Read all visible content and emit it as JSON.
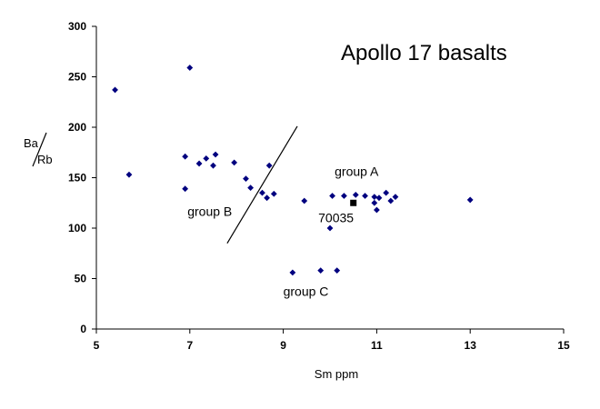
{
  "chart_data": {
    "type": "scatter",
    "title": "Apollo 17 basalts",
    "xlabel": "Sm ppm",
    "ylabel_numerator": "Ba",
    "ylabel_denominator": "Rb",
    "xlim": [
      5,
      15
    ],
    "ylim": [
      0,
      300
    ],
    "x_ticks": [
      5,
      7,
      9,
      11,
      13,
      15
    ],
    "y_ticks": [
      0,
      50,
      100,
      150,
      200,
      250,
      300
    ],
    "grid": false,
    "legend": "none",
    "colors": {
      "points": "#00007f",
      "highlight": "#000000",
      "line": "#000000"
    },
    "series": [
      {
        "points": [
          [
            5.4,
            237
          ],
          [
            5.7,
            153
          ],
          [
            6.9,
            171
          ],
          [
            7.0,
            259
          ],
          [
            6.9,
            139
          ],
          [
            7.2,
            164
          ],
          [
            7.35,
            169
          ],
          [
            7.5,
            162
          ],
          [
            7.55,
            173
          ],
          [
            7.95,
            165
          ],
          [
            8.2,
            149
          ],
          [
            8.3,
            140
          ],
          [
            8.55,
            135
          ],
          [
            8.7,
            162
          ],
          [
            8.8,
            134
          ],
          [
            8.65,
            130
          ],
          [
            9.45,
            127
          ],
          [
            10.05,
            132
          ],
          [
            10.3,
            132
          ],
          [
            10.55,
            133
          ],
          [
            10.75,
            132
          ],
          [
            10.95,
            131
          ],
          [
            11.05,
            130
          ],
          [
            11.2,
            135
          ],
          [
            11.3,
            127
          ],
          [
            11.4,
            131
          ],
          [
            10.95,
            125
          ],
          [
            11.0,
            118
          ],
          [
            10.0,
            100
          ],
          [
            13.0,
            128
          ],
          [
            9.2,
            56
          ],
          [
            9.8,
            58
          ],
          [
            10.15,
            58
          ]
        ]
      },
      {
        "points": [
          [
            10.5,
            125
          ]
        ]
      }
    ],
    "line": {
      "x": [
        7.8,
        9.3
      ],
      "y": [
        85,
        201
      ]
    },
    "annotations": [
      {
        "text": "group A",
        "x": 10.1,
        "y": 152
      },
      {
        "text": "group B",
        "x": 6.95,
        "y": 112
      },
      {
        "text": "group C",
        "x": 9.0,
        "y": 33
      },
      {
        "text": "70035",
        "x": 9.75,
        "y": 106
      }
    ]
  }
}
